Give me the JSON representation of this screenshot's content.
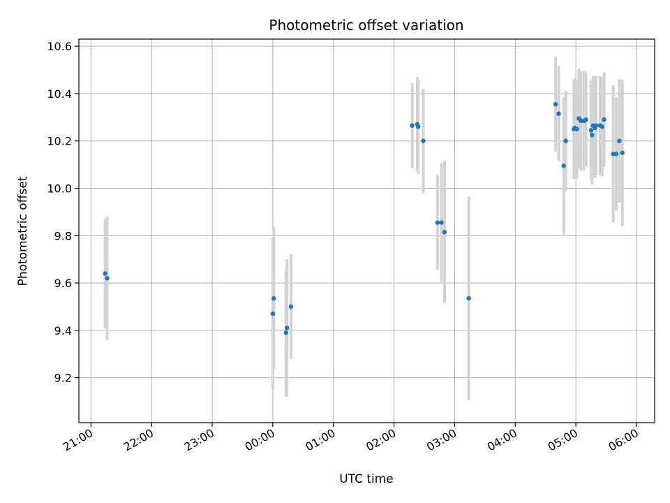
{
  "chart_data": {
    "type": "scatter",
    "title": "Photometric offset variation",
    "xlabel": "UTC time",
    "ylabel": "Photometric offset",
    "x_unit": "UTC time of day (hours); times after midnight are the following day",
    "xlim": [
      "20:48",
      "06:18"
    ],
    "ylim": [
      9.01,
      10.63
    ],
    "x_tick_labels": [
      "21:00",
      "22:00",
      "23:00",
      "00:00",
      "01:00",
      "02:00",
      "03:00",
      "04:00",
      "05:00",
      "06:00"
    ],
    "y_ticks": [
      9.2,
      9.4,
      9.6,
      9.8,
      10.0,
      10.2,
      10.4,
      10.6
    ],
    "y_tick_labels": [
      "9.2",
      "9.4",
      "9.6",
      "9.8",
      "10.0",
      "10.2",
      "10.4",
      "10.6"
    ],
    "grid": true,
    "colors": {
      "point": "#1f77b4",
      "errorbar": "#d3d3d3",
      "grid": "#b0b0b0",
      "axes": "#000000"
    },
    "series": [
      {
        "points": [
          {
            "x": "21:14",
            "y": 9.64,
            "err": 0.23
          },
          {
            "x": "21:16",
            "y": 9.62,
            "err": 0.26
          },
          {
            "x": "00:00",
            "y": 9.47,
            "err": 0.32
          },
          {
            "x": "00:01",
            "y": 9.535,
            "err": 0.3
          },
          {
            "x": "00:13",
            "y": 9.39,
            "err": 0.27
          },
          {
            "x": "00:14",
            "y": 9.41,
            "err": 0.29
          },
          {
            "x": "00:18",
            "y": 9.5,
            "err": 0.22
          },
          {
            "x": "02:18",
            "y": 10.265,
            "err": 0.18
          },
          {
            "x": "02:23",
            "y": 10.27,
            "err": 0.2
          },
          {
            "x": "02:24",
            "y": 10.26,
            "err": 0.2
          },
          {
            "x": "02:29",
            "y": 10.2,
            "err": 0.22
          },
          {
            "x": "02:43",
            "y": 9.855,
            "err": 0.2
          },
          {
            "x": "02:47",
            "y": 9.855,
            "err": 0.25
          },
          {
            "x": "02:50",
            "y": 9.815,
            "err": 0.3
          },
          {
            "x": "03:14",
            "y": 9.535,
            "err": 0.43
          },
          {
            "x": "04:40",
            "y": 10.355,
            "err": 0.2
          },
          {
            "x": "04:43",
            "y": 10.315,
            "err": 0.2
          },
          {
            "x": "04:48",
            "y": 10.095,
            "err": 0.29
          },
          {
            "x": "04:50",
            "y": 10.2,
            "err": 0.21
          },
          {
            "x": "04:58",
            "y": 10.25,
            "err": 0.21
          },
          {
            "x": "04:59",
            "y": 10.255,
            "err": 0.21
          },
          {
            "x": "05:01",
            "y": 10.25,
            "err": 0.21
          },
          {
            "x": "05:03",
            "y": 10.295,
            "err": 0.21
          },
          {
            "x": "05:05",
            "y": 10.285,
            "err": 0.21
          },
          {
            "x": "05:08",
            "y": 10.285,
            "err": 0.21
          },
          {
            "x": "05:10",
            "y": 10.29,
            "err": 0.2
          },
          {
            "x": "05:15",
            "y": 10.245,
            "err": 0.21
          },
          {
            "x": "05:16",
            "y": 10.225,
            "err": 0.21
          },
          {
            "x": "05:17",
            "y": 10.265,
            "err": 0.21
          },
          {
            "x": "05:19",
            "y": 10.255,
            "err": 0.21
          },
          {
            "x": "05:20",
            "y": 10.265,
            "err": 0.21
          },
          {
            "x": "05:24",
            "y": 10.265,
            "err": 0.21
          },
          {
            "x": "05:26",
            "y": 10.26,
            "err": 0.21
          },
          {
            "x": "05:28",
            "y": 10.29,
            "err": 0.2
          },
          {
            "x": "05:37",
            "y": 10.145,
            "err": 0.29
          },
          {
            "x": "05:40",
            "y": 10.145,
            "err": 0.24
          },
          {
            "x": "05:43",
            "y": 10.2,
            "err": 0.26
          },
          {
            "x": "05:46",
            "y": 10.15,
            "err": 0.31
          }
        ]
      }
    ]
  }
}
